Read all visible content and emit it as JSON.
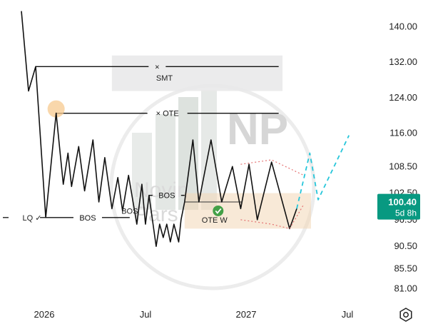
{
  "chart_data": {
    "type": "line",
    "title": "",
    "xlabel": "",
    "ylabel": "",
    "x_tick_labels": [
      "2026",
      "Jul",
      "2027",
      "Jul"
    ],
    "y_ticks": [
      140.0,
      132.0,
      124.0,
      116.0,
      108.5,
      102.5,
      96.5,
      90.5,
      85.5,
      81.0
    ],
    "y_tick_labels": [
      "140.00",
      "132.00",
      "124.00",
      "116.00",
      "108.50",
      "102.50",
      "96.50",
      "90.50",
      "85.50",
      "81.00"
    ],
    "ylim": [
      78.8,
      144.4
    ],
    "grid": false,
    "series": [
      {
        "name": "",
        "role": "price",
        "color": "#111111",
        "points": [
          [
            0.0,
            143.5
          ],
          [
            0.024,
            125.5
          ],
          [
            0.048,
            131.0
          ],
          [
            0.082,
            97.0
          ],
          [
            0.117,
            120.5
          ],
          [
            0.141,
            104.5
          ],
          [
            0.157,
            111.5
          ],
          [
            0.169,
            104.0
          ],
          [
            0.193,
            113.0
          ],
          [
            0.213,
            103.0
          ],
          [
            0.241,
            114.5
          ],
          [
            0.261,
            100.5
          ],
          [
            0.281,
            110.5
          ],
          [
            0.305,
            99.0
          ],
          [
            0.325,
            106.0
          ],
          [
            0.341,
            98.5
          ],
          [
            0.361,
            106.5
          ],
          [
            0.389,
            95.5
          ],
          [
            0.406,
            104.5
          ],
          [
            0.418,
            95.5
          ],
          [
            0.43,
            102.0
          ],
          [
            0.454,
            90.5
          ],
          [
            0.466,
            95.5
          ],
          [
            0.478,
            92.5
          ],
          [
            0.49,
            95.5
          ],
          [
            0.502,
            91.5
          ],
          [
            0.514,
            95.5
          ],
          [
            0.53,
            91.5
          ],
          [
            0.538,
            96.5
          ],
          [
            0.55,
            100.5
          ],
          [
            0.578,
            114.5
          ],
          [
            0.598,
            100.5
          ],
          [
            0.639,
            114.5
          ],
          [
            0.675,
            100.5
          ],
          [
            0.711,
            108.5
          ],
          [
            0.739,
            99.0
          ],
          [
            0.767,
            109.0
          ],
          [
            0.795,
            96.5
          ],
          [
            0.843,
            109.5
          ],
          [
            0.904,
            94.5
          ],
          [
            0.928,
            99.0
          ]
        ]
      },
      {
        "name": "",
        "role": "projection",
        "color": "#26c6da",
        "points": [
          [
            0.928,
            99.0
          ],
          [
            0.972,
            111.5
          ],
          [
            1.0,
            101.0
          ],
          [
            1.104,
            115.5
          ]
        ]
      },
      {
        "name": "",
        "role": "channel-upper",
        "color": "#e57373",
        "points": [
          [
            0.739,
            109.0
          ],
          [
            0.843,
            110.0
          ],
          [
            0.952,
            106.5
          ]
        ]
      },
      {
        "name": "",
        "role": "channel-lower",
        "color": "#e57373",
        "points": [
          [
            0.739,
            96.5
          ],
          [
            0.843,
            95.5
          ],
          [
            0.904,
            94.5
          ],
          [
            0.952,
            100.0
          ]
        ]
      }
    ],
    "annotations": {
      "levels": [
        {
          "label": "×",
          "y": 131.0,
          "x_start": 0.048,
          "x_end": 0.867
        },
        {
          "label": "× OTE",
          "y": 120.5,
          "x_start": 0.117,
          "x_end": 0.867
        },
        {
          "label": "BOS",
          "y": 97.0,
          "x_start": 0.082,
          "x_end": 0.365
        },
        {
          "label": "BOS",
          "y": 102.0,
          "x_start": 0.43,
          "x_end": 0.55
        },
        {
          "label": "",
          "y": 100.5,
          "x_start": 0.55,
          "x_end": 0.743
        }
      ],
      "text_labels": [
        {
          "text": "SMT",
          "x": 0.482,
          "y": 128.5
        },
        {
          "text": "LQ ✓",
          "x": 0.036,
          "y": 97.0
        },
        {
          "text": "BOS",
          "x": 0.365,
          "y": 98.5
        },
        {
          "text": "OTE W",
          "x": 0.651,
          "y": 96.5
        }
      ],
      "smt_box": {
        "x_start": 0.305,
        "x_end": 0.88,
        "y_top": 133.5,
        "y_bottom": 125.5
      },
      "ote_box": {
        "x_start": 0.55,
        "x_end": 0.976,
        "y_top": 102.5,
        "y_bottom": 94.5
      },
      "check_marker": {
        "x": 0.663,
        "y": 98.5
      },
      "point_marker": {
        "x": 0.117,
        "y": 120.5
      }
    },
    "price_tag": {
      "value": "100.40",
      "countdown": "5d 8h",
      "y": 100.4,
      "color": "#089981"
    },
    "watermark": {
      "text": "NP",
      "brand": "Novin",
      "brand2": "Pars"
    },
    "settings_icon": "gear-icon"
  }
}
